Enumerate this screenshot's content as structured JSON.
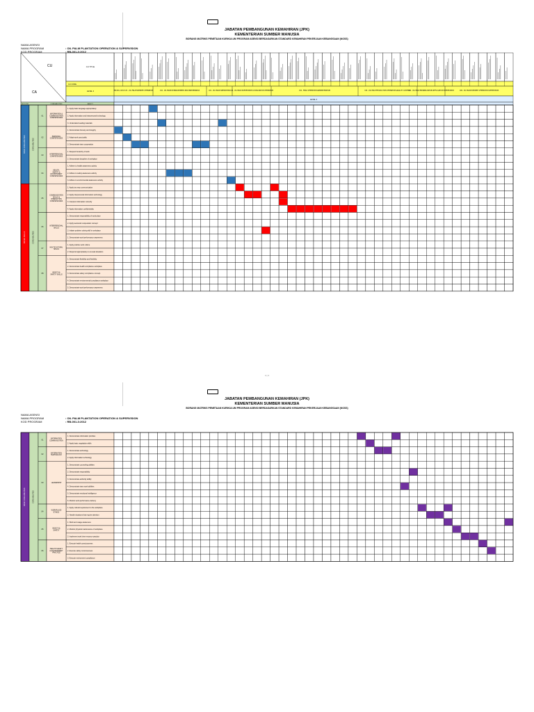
{
  "header": {
    "org_title": "JABATAN PEMBANGUNAN KEMAHIRAN (JPK)",
    "ministry": "KEMENTERIAN SUMBER MANUSIA",
    "form_title": "BORANG MATRIKS PEMETAAN KURIKULUM PROGRAM ASENSI BERDASARKAN STANDARD KEMAHIRAN PEKERJAAN KEBANGSAAN (NOSS)"
  },
  "meta": {
    "labels": [
      "NAMA ASENSI",
      "NAMA PROGRAM",
      "KOD PROGRAM"
    ],
    "values": [
      "",
      ": OIL PALM PLANTATION OPERATION & SUPERVISION",
      ": RB-001-3:2012"
    ]
  },
  "page1": {
    "cu_label": "CU",
    "ca_label": "CA",
    "header_labels": {
      "left": "NO/CODE",
      "mid": "CORE ABILITIES",
      "ability": "ABILITY",
      "cucode": "CU CODE",
      "level": "LEVEL 3"
    },
    "cu_groups": [
      "RB-001-3:2012 C01 - OIL PALM NURSERY OPERATION",
      "C02 - OIL PALM ESTABLISHMENT AND MAINTENANCE",
      "C03 - OIL PALM HARVESTING",
      "C04 - OIL PALM SUPERVISION & EVALUATION OPERATION",
      "C05 - FIELD OPERATION ADMINISTRATION",
      "C06 - OIL PALM PRODUCTION OPERATION QUALITY CONTROL",
      "C07 - OIL PALM REHABILITATION APPLICATION SUPERVISION",
      "C08 - OIL PALM NURSERY OPERATION SUPERVISION"
    ],
    "group_a": {
      "label": "BASIC CORE ABILITIES",
      "sub": "CORE ABILITIES"
    },
    "group_b": {
      "label": "SOCIAL SKILLS",
      "sub": "CORE ABILITIES"
    },
    "categories": [
      {
        "code": "01",
        "name": "INFORMATION & COMMUNICATION COMPETENCIES"
      },
      {
        "code": "02",
        "name": "PERSONAL COMPETENCIES"
      },
      {
        "code": "03",
        "name": "INTERPERSONAL COMPETENCIES"
      },
      {
        "code": "04",
        "name": "HEALTH, SAFETY & ENVIRONMENT COMPETENCIES"
      },
      {
        "code": "05",
        "name": "COMMUNICATION SKILLS & INTERACTION COMPETENCIES"
      },
      {
        "code": "06",
        "name": "INTERPERSONAL SKILLS"
      },
      {
        "code": "07",
        "name": "MULTICULTURAL SKILLS"
      },
      {
        "code": "08",
        "name": "HEALTH & SAFETY SKILLS"
      }
    ],
    "abilities": [
      "1. Apply basic language appropriately",
      "2. Apply information and interpersonal technology",
      "3. Understand reading materials",
      "1. Demonstrate honesty and integrity",
      "2. Adapt work punctuality",
      "3. Demonstrate team cooperation",
      "1. Respect hierarchy of work",
      "2. Demonstrate discipline of workplace",
      "1. Adhere to health awareness activity",
      "2. Adhere to safety awareness activity",
      "3. Adhere to environmental awareness activity",
      "1. Apply two way communication",
      "2. Apply interpersonal information technology",
      "3. Interpret information correctly",
      "4. Apply information confidentiality",
      "1. Demonstrate responsibility of work place",
      "2. Apply teamwork cooperation concept",
      "3. Initiate problem solving skill in workplace",
      "1. Demonstrate work performance awareness",
      "1. Apply positive work culture",
      "2. Respond appropriately to unusual situations",
      "1. Demonstrate flexibility and flexibility",
      "2. Demonstrate health compliance workplace",
      "3. Demonstrate safety compliance concept",
      "4. Demonstrate environmental compliance workplace",
      "5. Demonstrate work performance awareness"
    ]
  },
  "page2": {
    "group": {
      "label": "BASIC CORE ABILITIES",
      "sub": "CORE ABILITIES"
    },
    "categories": [
      {
        "code": "01",
        "name": "INFORMATION COMMUNICATION"
      },
      {
        "code": "02",
        "name": "INFORMATION TECHNOLOGY"
      },
      {
        "code": "03",
        "name": "LEADERSHIP"
      },
      {
        "code": "04",
        "name": "WORKPLACE ETHICS"
      },
      {
        "code": "05",
        "name": "HEALTH & SAFETY"
      },
      {
        "code": "06",
        "name": "HEALTH SAFETY & ENVIRONMENT PRACTICE"
      }
    ],
    "abilities": [
      "1. Demonstrate information priorities",
      "2. Apply basic negotiation skills",
      "1. Demonstrate technology",
      "2. Apply information technology",
      "1. Demonstrate counseling abilities",
      "2. Demonstrate responsibility",
      "3. Demonstrate authority ability",
      "4. Demonstrate team work abilities",
      "5. Demonstrate emotional intelligence",
      "6. Monitor work performance delivery",
      "1. Apply cultural requirement to the workplace",
      "2. Handle situations that require attention",
      "1. Work and usage awareness",
      "2. Monitor physical maintenance of workplace",
      "3. Implement work time resource practice",
      "1. Execute health consciousness",
      "2. Execute safety consciousness",
      "3. Execute environment compliance"
    ]
  },
  "page_number": "1 | 1"
}
